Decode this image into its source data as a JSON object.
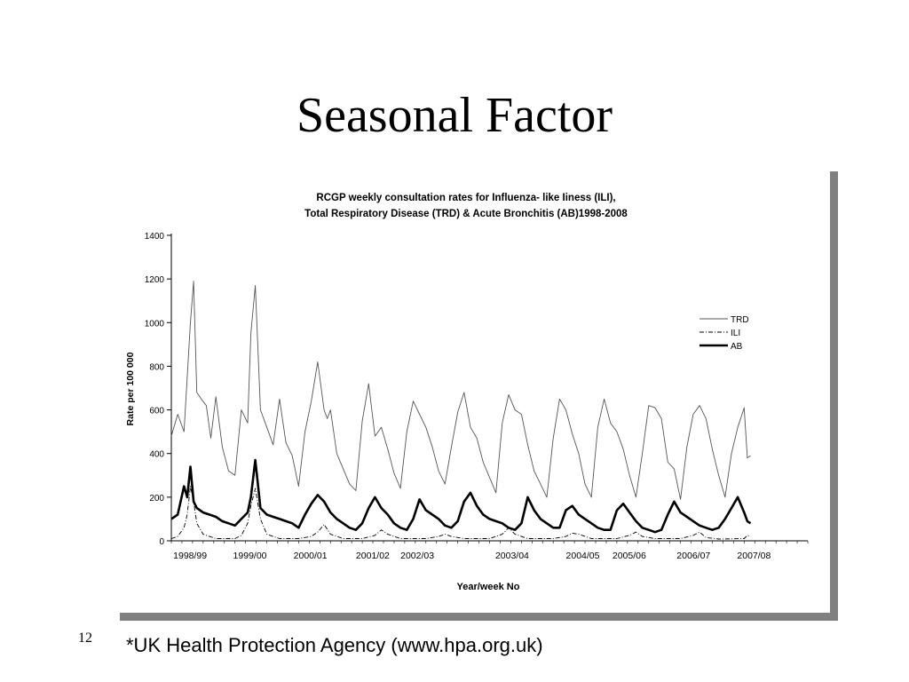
{
  "slide": {
    "title": "Seasonal Factor",
    "number": "12",
    "source": "*UK Health Protection Agency (www.hpa.org.uk)"
  },
  "chart_data": {
    "type": "line",
    "title_line1": "RCGP weekly consultation rates for Influenza- like Iiness (ILI),",
    "title_line2": "Total Respiratory Disease (TRD) & Acute Bronchitis (AB)1998-2008",
    "xlabel": "Year/week No",
    "ylabel": "Rate per 100 000",
    "ylim": [
      0,
      1400
    ],
    "yticks": [
      0,
      200,
      400,
      600,
      800,
      1000,
      1200,
      1400
    ],
    "xlim": [
      0,
      10
    ],
    "season_labels": [
      {
        "label": "1998/99",
        "x": 0.03
      },
      {
        "label": "1999/00",
        "x": 0.97
      },
      {
        "label": "2000/01",
        "x": 1.92
      },
      {
        "label": "2001/02",
        "x": 2.9
      },
      {
        "label": "2002/03",
        "x": 3.6
      },
      {
        "label": "2003/04",
        "x": 5.09
      },
      {
        "label": "2004/05",
        "x": 6.2
      },
      {
        "label": "2005/06",
        "x": 6.93
      },
      {
        "label": "2006/07",
        "x": 7.94
      },
      {
        "label": "2007/08",
        "x": 8.89
      }
    ],
    "legend": {
      "placement": "right",
      "entries": [
        "TRD",
        "ILI",
        "AB"
      ]
    },
    "grid": false,
    "series": [
      {
        "name": "TRD",
        "style": "thin",
        "x": [
          0.0,
          0.1,
          0.2,
          0.3,
          0.35,
          0.4,
          0.47,
          0.55,
          0.62,
          0.7,
          0.8,
          0.9,
          1.0,
          1.1,
          1.2,
          1.25,
          1.32,
          1.4,
          1.5,
          1.6,
          1.7,
          1.8,
          1.9,
          2.0,
          2.1,
          2.2,
          2.3,
          2.4,
          2.45,
          2.5,
          2.6,
          2.7,
          2.8,
          2.9,
          3.0,
          3.1,
          3.2,
          3.3,
          3.4,
          3.5,
          3.6,
          3.7,
          3.8,
          3.9,
          4.0,
          4.1,
          4.2,
          4.3,
          4.4,
          4.5,
          4.6,
          4.7,
          4.8,
          4.9,
          5.0,
          5.1,
          5.2,
          5.3,
          5.4,
          5.5,
          5.6,
          5.7,
          5.8,
          5.9,
          6.0,
          6.1,
          6.2,
          6.3,
          6.4,
          6.5,
          6.6,
          6.7,
          6.8,
          6.9,
          7.0,
          7.1,
          7.2,
          7.3,
          7.4,
          7.5,
          7.6,
          7.7,
          7.8,
          7.9,
          8.0,
          8.1,
          8.2,
          8.3,
          8.4,
          8.5,
          8.6,
          8.7,
          8.8,
          8.9,
          9.0,
          9.05,
          9.1
        ],
        "y": [
          480,
          580,
          500,
          1000,
          1190,
          680,
          650,
          620,
          470,
          660,
          430,
          320,
          300,
          600,
          540,
          950,
          1170,
          600,
          520,
          440,
          650,
          450,
          390,
          250,
          500,
          640,
          820,
          600,
          560,
          600,
          400,
          330,
          260,
          230,
          550,
          720,
          480,
          520,
          420,
          310,
          240,
          500,
          640,
          580,
          520,
          430,
          320,
          260,
          430,
          590,
          680,
          520,
          470,
          360,
          290,
          220,
          540,
          670,
          600,
          580,
          440,
          320,
          260,
          200,
          470,
          650,
          600,
          490,
          400,
          260,
          200,
          520,
          650,
          540,
          500,
          420,
          300,
          200,
          400,
          620,
          610,
          560,
          360,
          330,
          190,
          430,
          580,
          620,
          560,
          420,
          300,
          200,
          400,
          520,
          610,
          380,
          390
        ]
      },
      {
        "name": "ILI",
        "style": "dash-dot",
        "x": [
          0.0,
          0.1,
          0.2,
          0.25,
          0.3,
          0.35,
          0.4,
          0.5,
          0.7,
          1.0,
          1.1,
          1.2,
          1.25,
          1.32,
          1.4,
          1.5,
          1.7,
          2.0,
          2.2,
          2.3,
          2.4,
          2.5,
          2.7,
          3.0,
          3.2,
          3.3,
          3.4,
          3.6,
          4.0,
          4.2,
          4.3,
          4.4,
          4.6,
          5.0,
          5.2,
          5.3,
          5.4,
          5.6,
          6.0,
          6.2,
          6.3,
          6.4,
          6.6,
          7.0,
          7.2,
          7.3,
          7.4,
          7.6,
          8.0,
          8.2,
          8.3,
          8.4,
          8.6,
          9.0,
          9.05,
          9.1
        ],
        "y": [
          10,
          20,
          60,
          120,
          250,
          180,
          80,
          30,
          10,
          10,
          25,
          80,
          160,
          240,
          100,
          30,
          10,
          10,
          20,
          40,
          75,
          30,
          10,
          10,
          25,
          50,
          30,
          10,
          10,
          20,
          30,
          20,
          10,
          10,
          30,
          60,
          30,
          10,
          10,
          20,
          35,
          30,
          10,
          10,
          25,
          40,
          20,
          10,
          10,
          25,
          40,
          15,
          8,
          10,
          25,
          20
        ]
      },
      {
        "name": "AB",
        "style": "thick",
        "x": [
          0.0,
          0.1,
          0.2,
          0.25,
          0.3,
          0.35,
          0.4,
          0.5,
          0.6,
          0.7,
          0.8,
          0.9,
          1.0,
          1.1,
          1.2,
          1.25,
          1.32,
          1.4,
          1.5,
          1.6,
          1.7,
          1.8,
          1.9,
          2.0,
          2.1,
          2.2,
          2.3,
          2.4,
          2.5,
          2.6,
          2.7,
          2.8,
          2.9,
          3.0,
          3.1,
          3.2,
          3.3,
          3.4,
          3.5,
          3.6,
          3.7,
          3.8,
          3.9,
          4.0,
          4.1,
          4.2,
          4.3,
          4.4,
          4.5,
          4.6,
          4.7,
          4.8,
          4.9,
          5.0,
          5.1,
          5.2,
          5.3,
          5.4,
          5.5,
          5.6,
          5.7,
          5.8,
          5.9,
          6.0,
          6.1,
          6.2,
          6.3,
          6.4,
          6.5,
          6.6,
          6.7,
          6.8,
          6.9,
          7.0,
          7.1,
          7.2,
          7.3,
          7.4,
          7.5,
          7.6,
          7.7,
          7.8,
          7.9,
          8.0,
          8.1,
          8.2,
          8.3,
          8.4,
          8.5,
          8.6,
          8.7,
          8.8,
          8.9,
          9.0,
          9.05,
          9.1
        ],
        "y": [
          100,
          120,
          250,
          200,
          340,
          180,
          150,
          130,
          120,
          110,
          90,
          80,
          70,
          100,
          130,
          200,
          370,
          150,
          120,
          110,
          100,
          90,
          80,
          60,
          120,
          170,
          210,
          180,
          130,
          100,
          80,
          60,
          50,
          80,
          150,
          200,
          150,
          120,
          80,
          60,
          50,
          100,
          190,
          140,
          120,
          100,
          70,
          60,
          90,
          180,
          220,
          160,
          120,
          100,
          90,
          80,
          60,
          50,
          80,
          200,
          140,
          100,
          80,
          60,
          60,
          140,
          160,
          120,
          100,
          80,
          60,
          50,
          50,
          140,
          170,
          130,
          90,
          60,
          50,
          40,
          50,
          120,
          180,
          130,
          110,
          90,
          70,
          60,
          50,
          60,
          100,
          150,
          200,
          130,
          90,
          80
        ]
      }
    ]
  }
}
